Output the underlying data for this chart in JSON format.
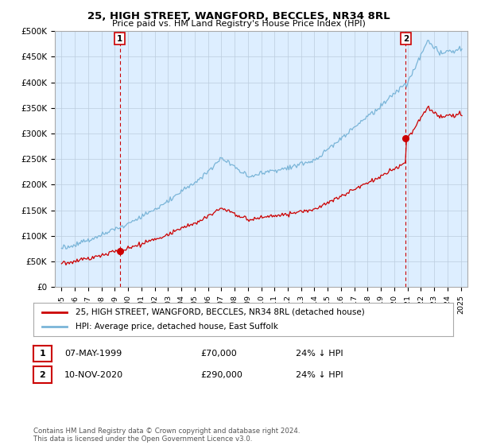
{
  "title": "25, HIGH STREET, WANGFORD, BECCLES, NR34 8RL",
  "subtitle": "Price paid vs. HM Land Registry's House Price Index (HPI)",
  "legend_line1": "25, HIGH STREET, WANGFORD, BECCLES, NR34 8RL (detached house)",
  "legend_line2": "HPI: Average price, detached house, East Suffolk",
  "footnote": "Contains HM Land Registry data © Crown copyright and database right 2024.\nThis data is licensed under the Open Government Licence v3.0.",
  "sale1_label": "1",
  "sale1_date": "07-MAY-1999",
  "sale1_price": "£70,000",
  "sale1_hpi": "24% ↓ HPI",
  "sale1_year": 1999.37,
  "sale1_value": 70000,
  "sale2_label": "2",
  "sale2_date": "10-NOV-2020",
  "sale2_price": "£290,000",
  "sale2_hpi": "24% ↓ HPI",
  "sale2_year": 2020.87,
  "sale2_value": 290000,
  "hpi_color": "#7ab5d8",
  "price_color": "#cc0000",
  "marker_color": "#cc0000",
  "vline_color": "#cc0000",
  "ylim": [
    0,
    500000
  ],
  "yticks": [
    0,
    50000,
    100000,
    150000,
    200000,
    250000,
    300000,
    350000,
    400000,
    450000,
    500000
  ],
  "xlim_start": 1994.5,
  "xlim_end": 2025.5,
  "background_color": "#ffffff",
  "plot_bg_color": "#ddeeff",
  "grid_color": "#bbccdd"
}
